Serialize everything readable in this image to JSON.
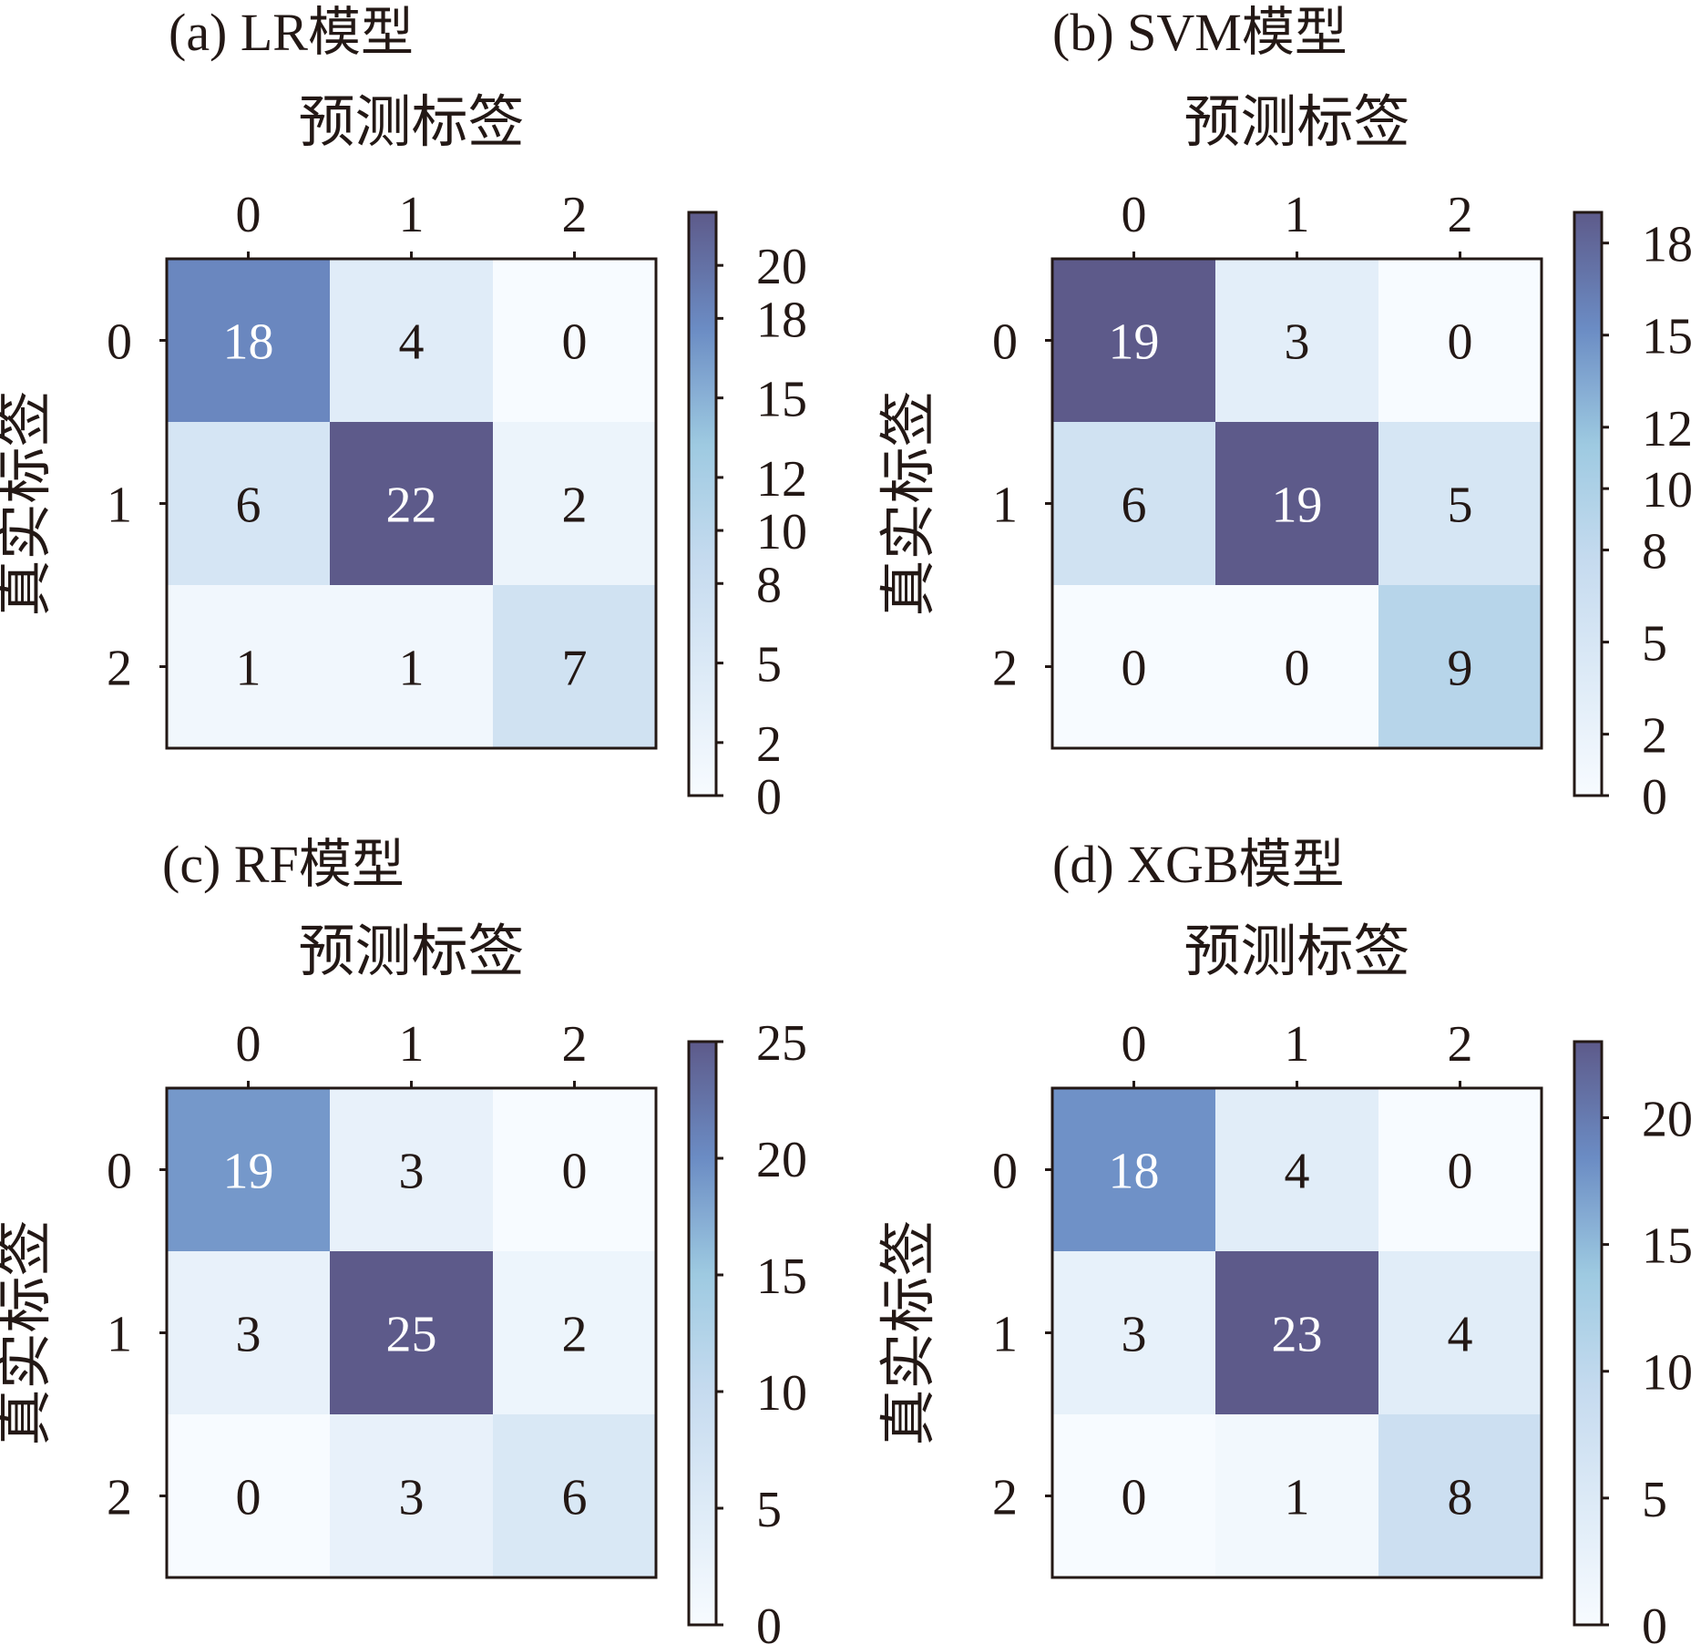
{
  "figure": {
    "colors": {
      "cmap": [
        "#f7fbff",
        "#deebf7",
        "#c6dbef",
        "#9ecae1",
        "#6b8cc4",
        "#5d5a8a"
      ],
      "text_dark": "#231815",
      "text_light": "#ffffff",
      "axis": "#231815"
    }
  },
  "chart_data": [
    {
      "type": "heatmap",
      "title": "(a) LR模型",
      "xlabel": "预测标签",
      "ylabel": "真实标签",
      "x_ticks": [
        "0",
        "1",
        "2"
      ],
      "y_ticks": [
        "0",
        "1",
        "2"
      ],
      "values": [
        [
          18,
          4,
          0
        ],
        [
          6,
          22,
          2
        ],
        [
          1,
          1,
          7
        ]
      ],
      "colorbar": {
        "range": [
          0,
          22
        ],
        "ticks": [
          0,
          2,
          5,
          8,
          10,
          12,
          15,
          18,
          20
        ],
        "tick_labels": [
          "0",
          "2",
          "5",
          "8",
          "10",
          "12",
          "15",
          "18",
          "20"
        ]
      }
    },
    {
      "type": "heatmap",
      "title": "(b) SVM模型",
      "xlabel": "预测标签",
      "ylabel": "真实标签",
      "x_ticks": [
        "0",
        "1",
        "2"
      ],
      "y_ticks": [
        "0",
        "1",
        "2"
      ],
      "values": [
        [
          19,
          3,
          0
        ],
        [
          6,
          19,
          5
        ],
        [
          0,
          0,
          9
        ]
      ],
      "colorbar": {
        "range": [
          0,
          19
        ],
        "ticks": [
          0,
          2,
          5,
          8,
          10,
          12,
          15,
          18
        ],
        "tick_labels": [
          "0",
          "2",
          "5",
          "8",
          "10",
          "12",
          "15",
          "18"
        ]
      }
    },
    {
      "type": "heatmap",
      "title": "(c) RF模型",
      "xlabel": "预测标签",
      "ylabel": "真实标签",
      "x_ticks": [
        "0",
        "1",
        "2"
      ],
      "y_ticks": [
        "0",
        "1",
        "2"
      ],
      "values": [
        [
          19,
          3,
          0
        ],
        [
          3,
          25,
          2
        ],
        [
          0,
          3,
          6
        ]
      ],
      "colorbar": {
        "range": [
          0,
          25
        ],
        "ticks": [
          0,
          5,
          10,
          15,
          20,
          25
        ],
        "tick_labels": [
          "0",
          "5",
          "10",
          "15",
          "20",
          "25"
        ]
      }
    },
    {
      "type": "heatmap",
      "title": "(d) XGB模型",
      "xlabel": "预测标签",
      "ylabel": "真实标签",
      "x_ticks": [
        "0",
        "1",
        "2"
      ],
      "y_ticks": [
        "0",
        "1",
        "2"
      ],
      "values": [
        [
          18,
          4,
          0
        ],
        [
          3,
          23,
          4
        ],
        [
          0,
          1,
          8
        ]
      ],
      "colorbar": {
        "range": [
          0,
          23
        ],
        "ticks": [
          0,
          5,
          10,
          15,
          20
        ],
        "tick_labels": [
          "0",
          "5",
          "10",
          "15",
          "20"
        ]
      }
    }
  ]
}
